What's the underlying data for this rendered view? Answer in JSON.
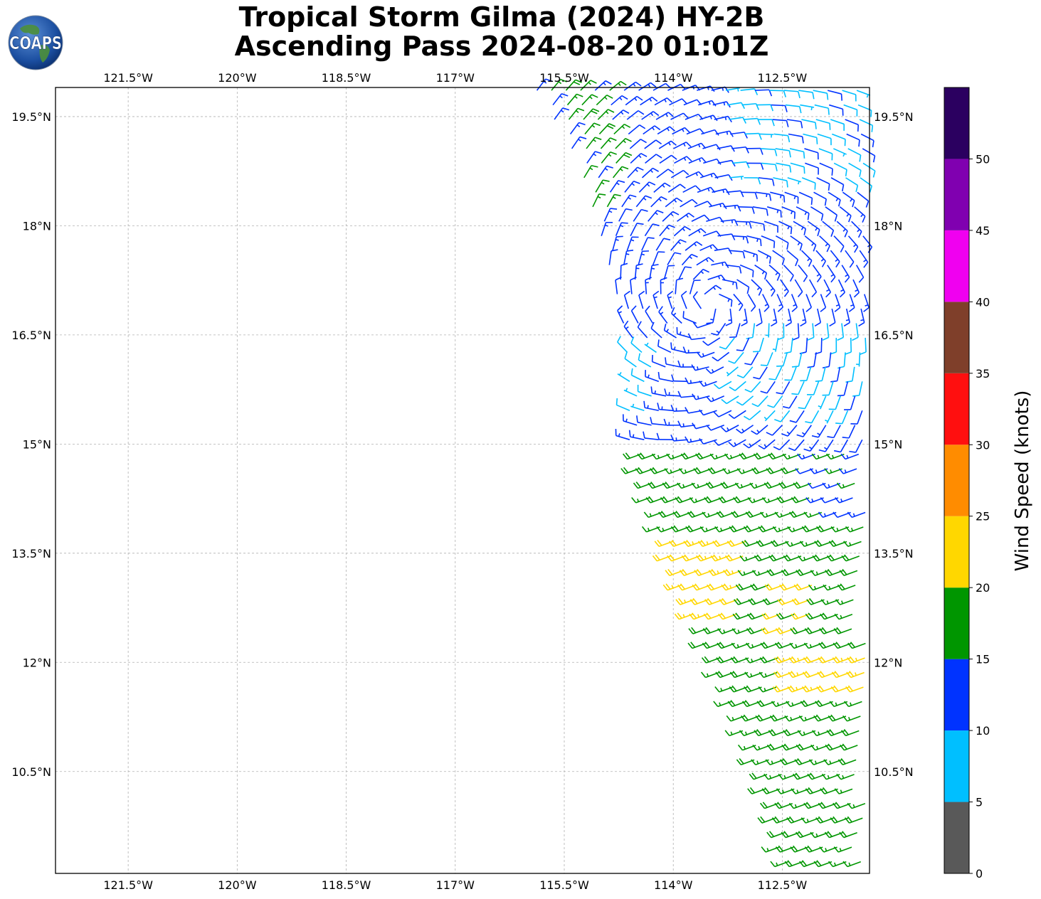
{
  "header": {
    "title_line1": "Tropical Storm Gilma (2024) HY-2B",
    "title_line2": "Ascending Pass 2024-08-20 01:01Z",
    "logo_text": "COAPS",
    "logo_icon": "globe-icon"
  },
  "chart_data": {
    "type": "wind-barb-map",
    "title": "Tropical Storm Gilma (2024) HY-2B Ascending Pass 2024-08-20 01:01Z",
    "xlim": [
      -122.5,
      -111.3
    ],
    "ylim": [
      9.1,
      19.9
    ],
    "grid": true,
    "lon_ticks": [
      {
        "value": -121.5,
        "label": "121.5°W"
      },
      {
        "value": -120.0,
        "label": "120°W"
      },
      {
        "value": -118.5,
        "label": "118.5°W"
      },
      {
        "value": -117.0,
        "label": "117°W"
      },
      {
        "value": -115.5,
        "label": "115.5°W"
      },
      {
        "value": -114.0,
        "label": "114°W"
      },
      {
        "value": -112.5,
        "label": "112.5°W"
      }
    ],
    "lat_ticks": [
      {
        "value": 19.5,
        "label": "19.5°N"
      },
      {
        "value": 18.0,
        "label": "18°N"
      },
      {
        "value": 16.5,
        "label": "16.5°N"
      },
      {
        "value": 15.0,
        "label": "15°N"
      },
      {
        "value": 13.5,
        "label": "13.5°N"
      },
      {
        "value": 12.0,
        "label": "12°N"
      },
      {
        "value": 10.5,
        "label": "10.5°N"
      }
    ],
    "colorbar": {
      "label": "Wind Speed (knots)",
      "ticks": [
        "0",
        "5",
        "10",
        "15",
        "20",
        "25",
        "30",
        "35",
        "40",
        "45",
        "50"
      ],
      "bins": [
        {
          "min": 0,
          "max": 5,
          "color": "#595959"
        },
        {
          "min": 5,
          "max": 10,
          "color": "#00bfff"
        },
        {
          "min": 10,
          "max": 15,
          "color": "#0033ff"
        },
        {
          "min": 15,
          "max": 20,
          "color": "#009600"
        },
        {
          "min": 20,
          "max": 25,
          "color": "#ffd700"
        },
        {
          "min": 25,
          "max": 30,
          "color": "#ff8c00"
        },
        {
          "min": 30,
          "max": 35,
          "color": "#ff0f0f"
        },
        {
          "min": 35,
          "max": 40,
          "color": "#7f3f2a"
        },
        {
          "min": 40,
          "max": 45,
          "color": "#f000f0"
        },
        {
          "min": 45,
          "max": 50,
          "color": "#8000b0"
        },
        {
          "min": 50,
          "max": 55,
          "color": "#2b0060"
        }
      ]
    },
    "swath": {
      "top_edge": [
        [
          -115.9,
          19.92
        ],
        [
          -113.6,
          19.92
        ],
        [
          -111.3,
          19.92
        ]
      ],
      "left_edge": [
        [
          -115.9,
          19.9
        ],
        [
          -115.3,
          18.9
        ],
        [
          -115.0,
          17.9
        ],
        [
          -114.7,
          16.8
        ],
        [
          -114.6,
          16.0
        ],
        [
          -114.6,
          15.0
        ],
        [
          -114.2,
          13.9
        ],
        [
          -113.8,
          12.8
        ],
        [
          -113.3,
          11.7
        ],
        [
          -112.9,
          10.7
        ],
        [
          -112.6,
          9.9
        ],
        [
          -112.5,
          9.1
        ]
      ],
      "right_lon": -111.35,
      "barb_spacing_deg": 0.125
    },
    "wind_field": {
      "center": [
        -113.5,
        16.9
      ],
      "cyclonic_rotation": true,
      "regions": [
        {
          "lat_min": 18.2,
          "lat_max": 19.9,
          "lon_min": -115.9,
          "lon_max": -114.7,
          "speed_kt": 16,
          "direction": "northwesterly-sweep"
        },
        {
          "lat_min": 18.6,
          "lat_max": 19.9,
          "lon_min": -113.3,
          "lon_max": -111.3,
          "speed_kt": 9
        },
        {
          "lat_min": 15.4,
          "lat_max": 16.8,
          "lon_min": -113.2,
          "lon_max": -111.3,
          "speed_kt": 9
        },
        {
          "lat_min": 15.4,
          "lat_max": 16.3,
          "lon_min": -114.7,
          "lon_max": -114.2,
          "speed_kt": 8
        },
        {
          "lat_min": 9.1,
          "lat_max": 14.9,
          "lon_min": -114.6,
          "lon_max": -111.3,
          "speed_kt": 18,
          "direction": "westerly"
        },
        {
          "lat_min": 12.6,
          "lat_max": 13.8,
          "lon_min": -114.1,
          "lon_max": -113.0,
          "speed_kt": 22
        },
        {
          "lat_min": 11.6,
          "lat_max": 12.2,
          "lon_min": -112.4,
          "lon_max": -111.3,
          "speed_kt": 22
        },
        {
          "lat_min": 12.4,
          "lat_max": 13.2,
          "lon_min": -112.7,
          "lon_max": -112.0,
          "speed_kt": 21
        },
        {
          "lat_min": 13.9,
          "lat_max": 14.9,
          "lon_min": -112.1,
          "lon_max": -111.3,
          "speed_kt": 14
        }
      ],
      "default_speed_kt": 13
    }
  }
}
